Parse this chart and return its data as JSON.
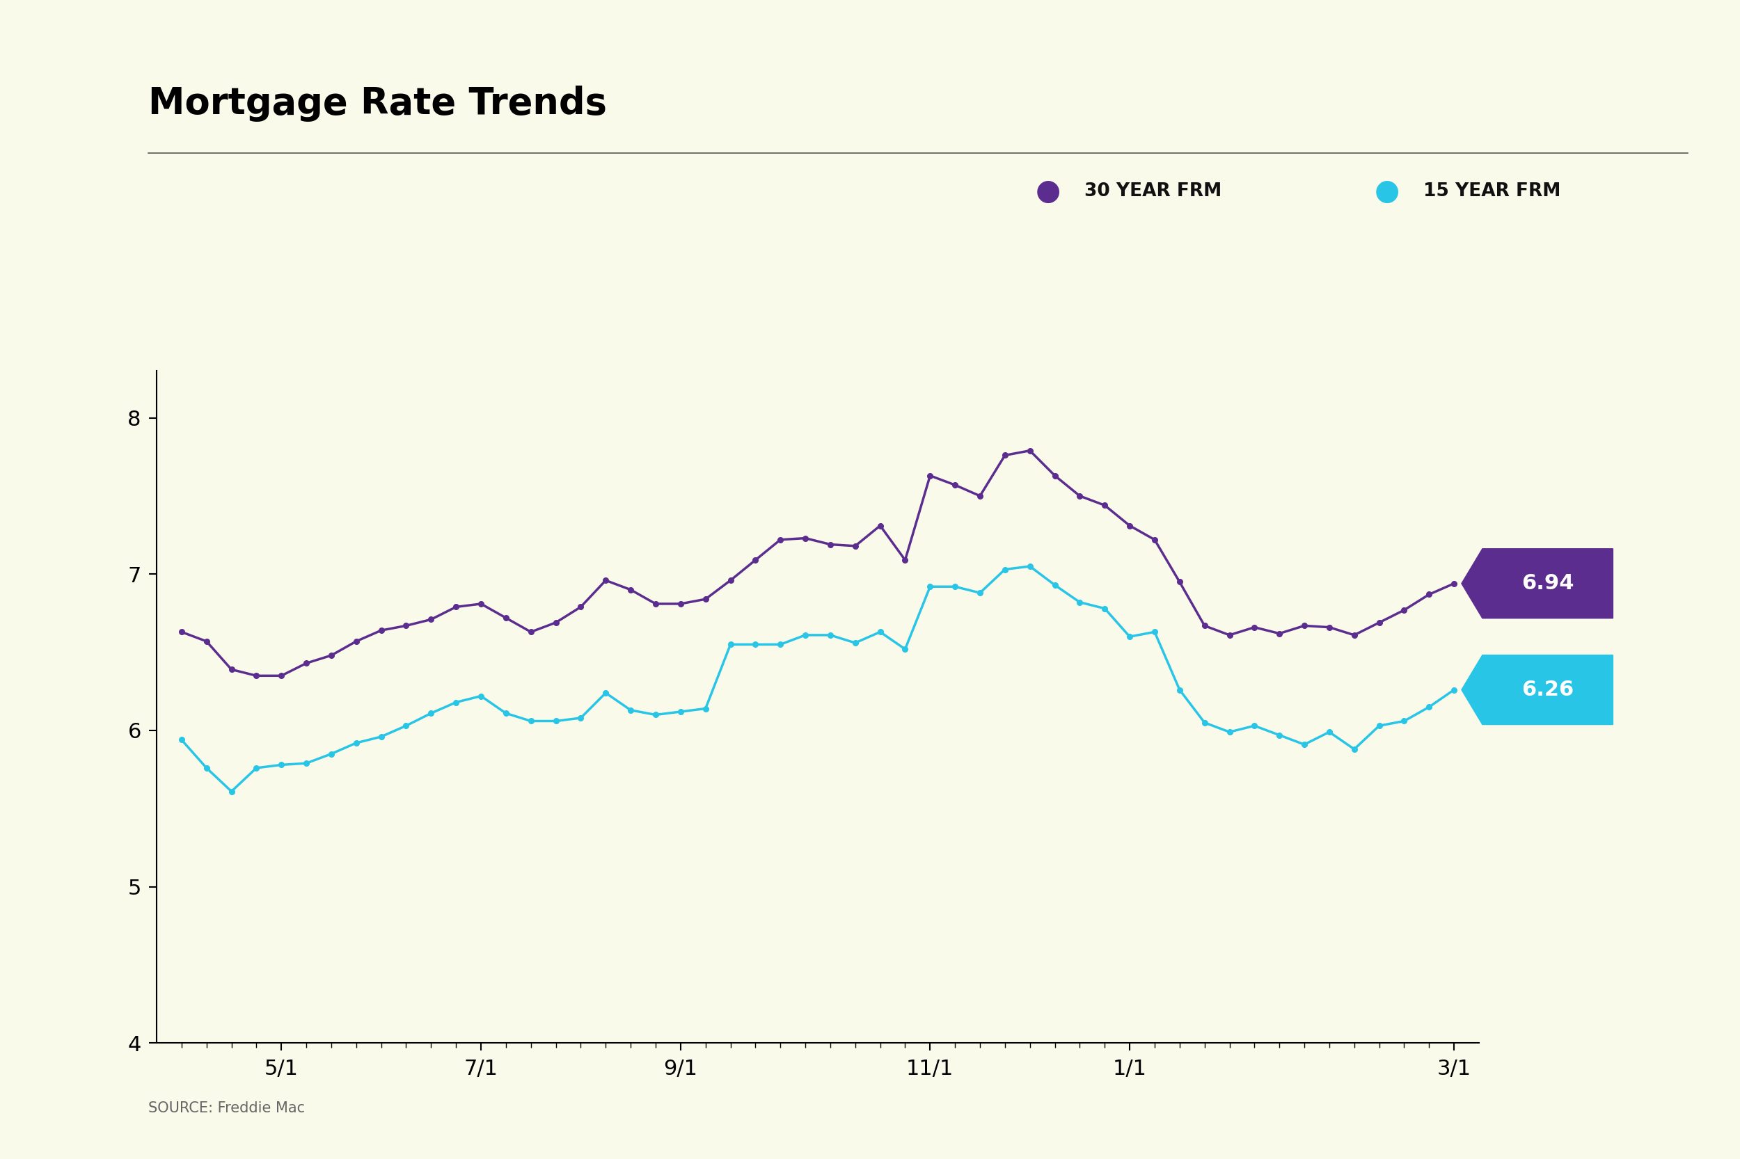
{
  "title": "Mortgage Rate Trends",
  "background_color": "#FAFAEB",
  "line_color_30yr": "#5B2D8E",
  "line_color_15yr": "#29C5E6",
  "label_bg_30yr": "#5B2D8E",
  "label_bg_15yr": "#29C5E6",
  "label_30yr": "6.94",
  "label_15yr": "6.26",
  "legend_30yr": "30 YEAR FRM",
  "legend_15yr": "15 YEAR FRM",
  "source_text": "SOURCE: Freddie Mac",
  "ylim": [
    4.0,
    8.3
  ],
  "yticks": [
    4,
    5,
    6,
    7,
    8
  ],
  "x_labels": [
    "5/1",
    "7/1",
    "9/1",
    "11/1",
    "1/1",
    "3/1"
  ],
  "dates_30yr": [
    0,
    1,
    2,
    3,
    4,
    5,
    6,
    7,
    8,
    9,
    10,
    11,
    12,
    13,
    14,
    15,
    16,
    17,
    18,
    19,
    20,
    21,
    22,
    23,
    24,
    25,
    26,
    27,
    28,
    29,
    30,
    31,
    32,
    33,
    34,
    35,
    36,
    37,
    38,
    39,
    40,
    41,
    42,
    43,
    44,
    45,
    46,
    47,
    48,
    49,
    50,
    51
  ],
  "rates_30yr": [
    6.63,
    6.57,
    6.39,
    6.35,
    6.35,
    6.43,
    6.48,
    6.57,
    6.64,
    6.67,
    6.71,
    6.79,
    6.81,
    6.72,
    6.63,
    6.69,
    6.79,
    6.96,
    6.9,
    6.81,
    6.81,
    6.84,
    6.96,
    7.09,
    7.22,
    7.23,
    7.19,
    7.18,
    7.31,
    7.09,
    7.63,
    7.57,
    7.5,
    7.76,
    7.79,
    7.63,
    7.5,
    7.44,
    7.31,
    7.22,
    6.95,
    6.67,
    6.61,
    6.66,
    6.62,
    6.67,
    6.66,
    6.61,
    6.69,
    6.77,
    6.87,
    6.94
  ],
  "dates_15yr": [
    0,
    1,
    2,
    3,
    4,
    5,
    6,
    7,
    8,
    9,
    10,
    11,
    12,
    13,
    14,
    15,
    16,
    17,
    18,
    19,
    20,
    21,
    22,
    23,
    24,
    25,
    26,
    27,
    28,
    29,
    30,
    31,
    32,
    33,
    34,
    35,
    36,
    37,
    38,
    39,
    40,
    41,
    42,
    43,
    44,
    45,
    46,
    47,
    48,
    49,
    50,
    51
  ],
  "rates_15yr": [
    5.94,
    5.76,
    5.61,
    5.76,
    5.78,
    5.79,
    5.85,
    5.92,
    5.96,
    6.03,
    6.11,
    6.18,
    6.22,
    6.11,
    6.06,
    6.06,
    6.08,
    6.24,
    6.13,
    6.1,
    6.12,
    6.14,
    6.55,
    6.55,
    6.55,
    6.61,
    6.61,
    6.56,
    6.63,
    6.52,
    6.92,
    6.92,
    6.88,
    7.03,
    7.05,
    6.93,
    6.82,
    6.78,
    6.6,
    6.63,
    6.26,
    6.05,
    5.99,
    6.03,
    5.97,
    5.91,
    5.99,
    5.88,
    6.03,
    6.06,
    6.15,
    6.26
  ],
  "x_tick_positions": [
    4,
    12,
    20,
    30,
    38,
    51
  ],
  "line_width": 2.5,
  "marker_size": 5.5
}
